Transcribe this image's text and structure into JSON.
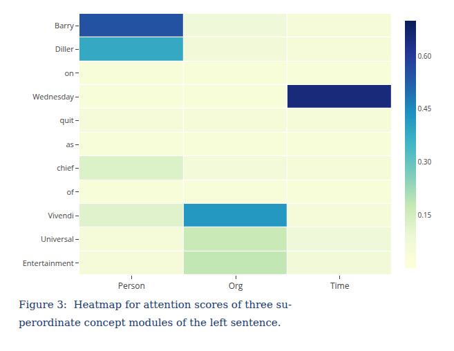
{
  "chart_data": {
    "type": "heatmap",
    "x": [
      "Person",
      "Org",
      "Time"
    ],
    "y": [
      "Barry",
      "Diller",
      "on",
      "Wednesday",
      "quit",
      "as",
      "chief",
      "of",
      "Vivendi",
      "Universal",
      "Entertainment"
    ],
    "cells": [
      [
        0.55,
        0.08,
        0.05
      ],
      [
        0.38,
        0.07,
        0.05
      ],
      [
        0.04,
        0.04,
        0.04
      ],
      [
        0.04,
        0.04,
        0.65
      ],
      [
        0.05,
        0.05,
        0.05
      ],
      [
        0.04,
        0.04,
        0.04
      ],
      [
        0.13,
        0.06,
        0.05
      ],
      [
        0.04,
        0.04,
        0.04
      ],
      [
        0.12,
        0.42,
        0.05
      ],
      [
        0.05,
        0.17,
        0.08
      ],
      [
        0.05,
        0.18,
        0.07
      ]
    ],
    "color": "YlGnBu",
    "colorbar_range": [
      0.0,
      0.7
    ],
    "colorbar_ticks": [
      0.15,
      {
        "value": 0.3,
        "label": "0.30"
      },
      0.45,
      {
        "value": 0.6,
        "label": "0.60"
      }
    ],
    "annotations": [
      {
        "text": "Figure 3:  Heatmap for attention scores of three su-",
        "color": "#1a3a6e"
      },
      {
        "text": "perordinate concept modules of the left sentence.",
        "color": "#1a3a6e"
      }
    ],
    "grid": false
  }
}
